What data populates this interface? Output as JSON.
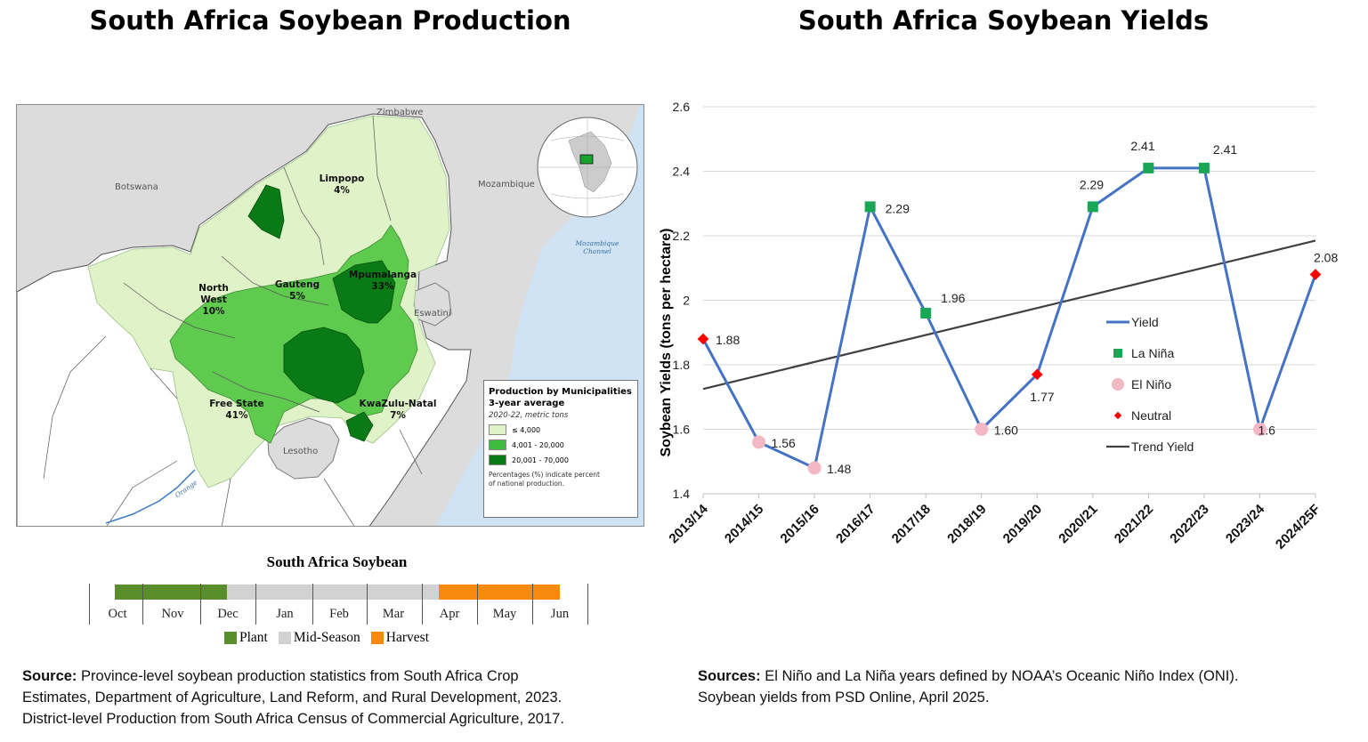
{
  "left_panel": {
    "title": "South Africa Soybean Production",
    "map": {
      "countries": {
        "zimbabwe": "Zimbabwe",
        "botswana": "Botswana",
        "mozambique": "Mozambique",
        "eswatini": "Eswatini",
        "lesotho": "Lesotho"
      },
      "waters": {
        "channel": "Mozambique Channel",
        "river": "Orange"
      },
      "provinces": [
        {
          "id": "limpopo",
          "name": "Limpopo",
          "share": "4%"
        },
        {
          "id": "north-west",
          "name": "North West",
          "share": "10%"
        },
        {
          "id": "gauteng",
          "name": "Gauteng",
          "share": "5%"
        },
        {
          "id": "mpumalanga",
          "name": "Mpumalanga",
          "share": "33%"
        },
        {
          "id": "free-state",
          "name": "Free State",
          "share": "41%"
        },
        {
          "id": "kwazulu-natal",
          "name": "KwaZulu-Natal",
          "share": "7%"
        }
      ],
      "legend": {
        "title_line1": "Production by Municipalities",
        "title_line2": "3-year average",
        "subtitle": "2020-22, metric tons",
        "classes": [
          {
            "label": "≤ 4,000",
            "color": "#dff2c8"
          },
          {
            "label": "4,001 - 20,000",
            "color": "#3ebb3b"
          },
          {
            "label": "20,001 - 70,000",
            "color": "#0a7a16"
          }
        ],
        "note_line1": "Percentages (%) indicate percent",
        "note_line2": "of national production."
      }
    },
    "calendar": {
      "title": "South Africa Soybean",
      "months": [
        "Oct",
        "Nov",
        "Dec",
        "Jan",
        "Feb",
        "Mar",
        "Apr",
        "May",
        "Jun"
      ],
      "legend": [
        {
          "label": "Plant",
          "color": "#5a8d2c"
        },
        {
          "label": "Mid-Season",
          "color": "#d2d2d2"
        },
        {
          "label": "Harvest",
          "color": "#f7890e"
        }
      ]
    },
    "source": {
      "label": "Source:",
      "line1": " Province-level soybean production statistics from South Africa Crop",
      "line2": "Estimates, Department of Agriculture, Land Reform, and Rural Development, 2023.",
      "line3": "District-level Production from South Africa Census of Commercial Agriculture, 2017."
    }
  },
  "right_panel": {
    "title": "South Africa Soybean Yields",
    "source": {
      "label": "Sources:",
      "line1": " El Niño and La Niña years defined by NOAA’s Oceanic Niño Index (ONI).",
      "line2": "Soybean yields from PSD Online, April 2025."
    }
  },
  "chart_data": {
    "type": "line",
    "title": "South Africa Soybean Yields",
    "xlabel": "",
    "ylabel": "Soybean Yields (tons per hectare)",
    "ylim": [
      1.4,
      2.6
    ],
    "yticks": [
      1.4,
      1.6,
      1.8,
      2,
      2.2,
      2.4,
      2.6
    ],
    "ytick_labels": [
      "1.4",
      "1.6",
      "1.8",
      "2",
      "2.2",
      "2.4",
      "2.6"
    ],
    "grid": true,
    "categories": [
      "2013/14",
      "2014/15",
      "2015/16",
      "2016/17",
      "2017/18",
      "2018/19",
      "2019/20",
      "2020/21",
      "2021/22",
      "2022/23",
      "2023/24",
      "2024/25F"
    ],
    "series": [
      {
        "name": "Yield",
        "color": "#4472c4",
        "values": [
          1.88,
          1.56,
          1.48,
          2.29,
          1.96,
          1.6,
          1.77,
          2.29,
          2.41,
          2.41,
          1.6,
          2.08
        ]
      },
      {
        "name": "Trend Yield",
        "color": "#404040",
        "start": 1.725,
        "end": 2.185
      }
    ],
    "enso_class": [
      "Neutral",
      "El Niño",
      "El Niño",
      "La Niña",
      "La Niña",
      "El Niño",
      "Neutral",
      "La Niña",
      "La Niña",
      "La Niña",
      "El Niño",
      "Neutral"
    ],
    "data_labels": [
      "1.88",
      "1.56",
      "1.48",
      "2.29",
      "1.96",
      "1.60",
      "1.77",
      "2.29",
      "2.41",
      "2.41",
      "1.6",
      "2.08"
    ],
    "marker_styles": {
      "La Niña": {
        "color": "#19a655",
        "shape": "square"
      },
      "El Niño": {
        "color": "#f4b8c4",
        "shape": "circle"
      },
      "Neutral": {
        "color": "#ff0000",
        "shape": "diamond"
      }
    },
    "legend": [
      "Yield",
      "La Niña",
      "El Niño",
      "Neutral",
      "Trend Yield"
    ],
    "legend_position": "center-right"
  }
}
